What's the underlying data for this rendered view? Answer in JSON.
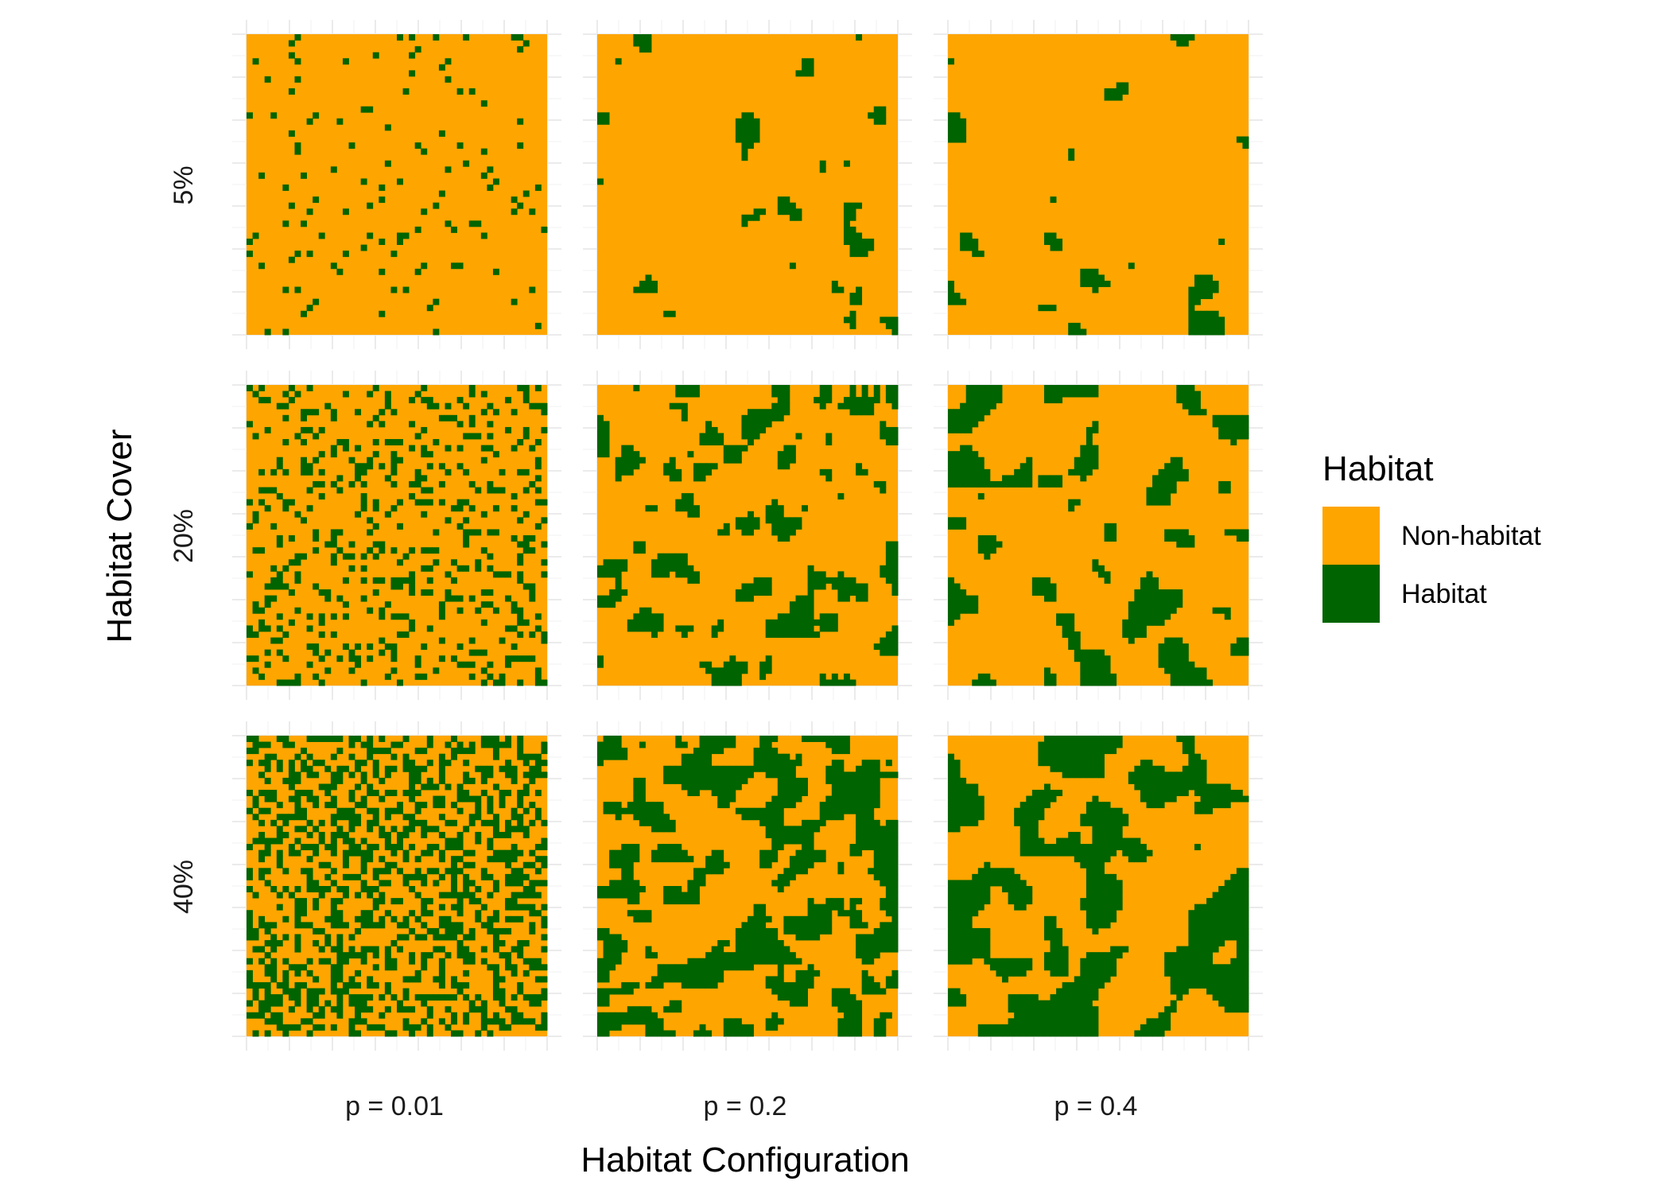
{
  "chart_data": {
    "type": "heatmap",
    "title": "",
    "xlabel": "Habitat Configuration",
    "ylabel": "Habitat Cover",
    "column_facets": [
      "p = 0.01",
      "p = 0.2",
      "p = 0.4"
    ],
    "row_facets": [
      "5%",
      "20%",
      "40%"
    ],
    "habitat_cover_fraction": [
      0.05,
      0.2,
      0.4
    ],
    "configuration_p": [
      0.01,
      0.2,
      0.4
    ],
    "grid_cells_per_side": 50,
    "legend": {
      "title": "Habitat",
      "position": "right",
      "entries": [
        {
          "label": "Non-habitat",
          "color": "#FFA500"
        },
        {
          "label": "Habitat",
          "color": "#006400"
        }
      ]
    },
    "grid_lines": true
  }
}
